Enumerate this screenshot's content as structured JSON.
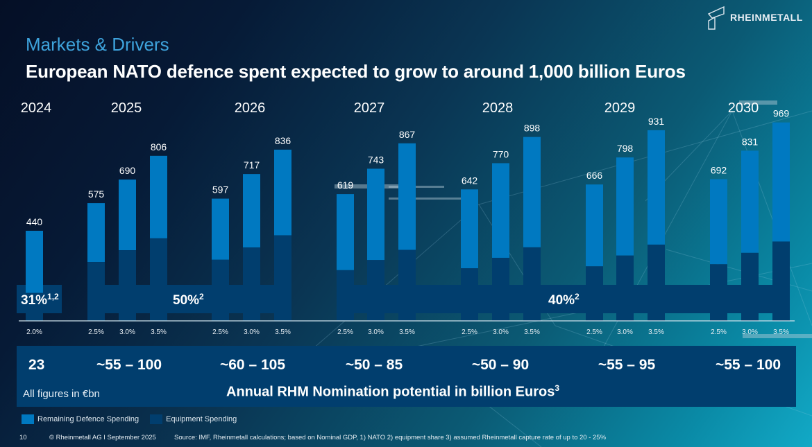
{
  "header": {
    "kicker": "Markets & Drivers",
    "headline": "European NATO defence spent expected to grow to around 1,000 billion Euros",
    "brand": "RHEINMETALL"
  },
  "colors": {
    "remaining": "#0079c1",
    "equipment": "#013e6e",
    "kicker": "#3ea3dc"
  },
  "chart_data": {
    "type": "bar",
    "stacked": true,
    "title": "European NATO defence spent expected to grow to around 1,000 billion Euros",
    "unit": "€bn",
    "ylim": [
      0,
      1000
    ],
    "groups": [
      {
        "year": "2024",
        "scenarios": [
          "2.0%"
        ],
        "totals": [
          440
        ],
        "equipment_share_label": "31%",
        "equipment_share_note": "1,2",
        "equipment_share": 0.31
      },
      {
        "year": "2025",
        "scenarios": [
          "2.5%",
          "3.0%",
          "3.5%"
        ],
        "totals": [
          575,
          690,
          806
        ],
        "equipment_share_label": "50%",
        "equipment_share_note": "2",
        "equipment_share": 0.5
      },
      {
        "year": "2026",
        "scenarios": [
          "2.5%",
          "3.0%",
          "3.5%"
        ],
        "totals": [
          597,
          717,
          836
        ],
        "equipment_share_label": "",
        "equipment_share_note": "",
        "equipment_share": 0.5
      },
      {
        "year": "2027",
        "scenarios": [
          "2.5%",
          "3.0%",
          "3.5%"
        ],
        "totals": [
          619,
          743,
          867
        ],
        "equipment_share_label": "",
        "equipment_share_note": "",
        "equipment_share": 0.4
      },
      {
        "year": "2028",
        "scenarios": [
          "2.5%",
          "3.0%",
          "3.5%"
        ],
        "totals": [
          642,
          770,
          898
        ],
        "equipment_share_label": "40%",
        "equipment_share_note": "2",
        "equipment_share": 0.4
      },
      {
        "year": "2029",
        "scenarios": [
          "2.5%",
          "3.0%",
          "3.5%"
        ],
        "totals": [
          666,
          798,
          931
        ],
        "equipment_share_label": "",
        "equipment_share_note": "",
        "equipment_share": 0.4
      },
      {
        "year": "2030",
        "scenarios": [
          "2.5%",
          "3.0%",
          "3.5%"
        ],
        "totals": [
          692,
          831,
          969
        ],
        "equipment_share_label": "",
        "equipment_share_note": "",
        "equipment_share": 0.4
      }
    ],
    "series": [
      {
        "name": "Remaining Defence Spending"
      },
      {
        "name": "Equipment Spending"
      }
    ],
    "share_bands": [
      {
        "label": "31%",
        "note": "1,2",
        "from_group": 0,
        "to_group": 0
      },
      {
        "label": "50%",
        "note": "2",
        "from_group": 1,
        "to_group": 2
      },
      {
        "label": "40%",
        "note": "2",
        "from_group": 3,
        "to_group": 6
      }
    ],
    "legend_position": "bottom-left"
  },
  "nomination": {
    "values": [
      "23",
      "~55 – 100",
      "~60 – 105",
      "~50 – 85",
      "~50 – 90",
      "~55 – 95",
      "~55 – 100"
    ],
    "unit_note": "All figures in €bn",
    "title": "Annual RHM Nomination potential in billion Euros",
    "title_note": "3"
  },
  "legend": {
    "remaining": "Remaining Defence Spending",
    "equipment": "Equipment Spending"
  },
  "footer": {
    "page": "10",
    "copyright": "© Rheinmetall AG I September 2025",
    "source": "Source: IMF, Rheinmetall calculations; based on Nominal GDP, 1) NATO 2) equipment share 3) assumed Rheinmetall capture rate of up to 20 - 25%"
  }
}
